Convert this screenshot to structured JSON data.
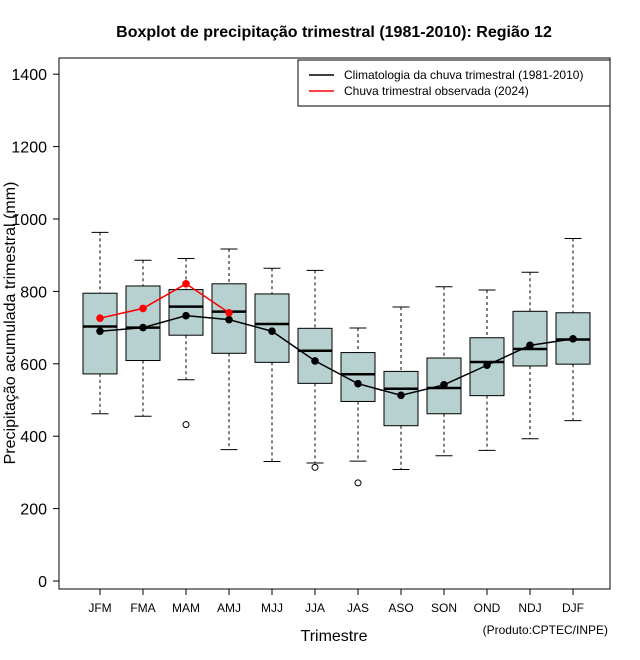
{
  "chart_data": {
    "type": "boxplot",
    "title": "Boxplot de precipitação trimestral (1981-2010): Região 12",
    "xlabel": "Trimestre",
    "ylabel": "Precipitação acumulada trimestral (mm)",
    "ylim": [
      0,
      1400
    ],
    "yticks": [
      0,
      200,
      400,
      600,
      800,
      1000,
      1200,
      1400
    ],
    "credit": "(Produto:CPTEC/INPE)",
    "categories": [
      "JFM",
      "FMA",
      "MAM",
      "AMJ",
      "MJJ",
      "JJA",
      "JAS",
      "ASO",
      "SON",
      "OND",
      "NDJ",
      "DJF"
    ],
    "boxes": [
      {
        "min": 462,
        "q1": 572,
        "median": 703,
        "q3": 795,
        "max": 963,
        "outliers": []
      },
      {
        "min": 455,
        "q1": 609,
        "median": 700,
        "q3": 815,
        "max": 886,
        "outliers": []
      },
      {
        "min": 556,
        "q1": 679,
        "median": 758,
        "q3": 805,
        "max": 891,
        "outliers": [
          432
        ]
      },
      {
        "min": 363,
        "q1": 629,
        "median": 744,
        "q3": 821,
        "max": 917,
        "outliers": []
      },
      {
        "min": 330,
        "q1": 604,
        "median": 710,
        "q3": 793,
        "max": 864,
        "outliers": []
      },
      {
        "min": 326,
        "q1": 546,
        "median": 636,
        "q3": 698,
        "max": 858,
        "outliers": [
          314
        ]
      },
      {
        "min": 331,
        "q1": 496,
        "median": 571,
        "q3": 631,
        "max": 699,
        "outliers": [
          271
        ]
      },
      {
        "min": 308,
        "q1": 429,
        "median": 531,
        "q3": 579,
        "max": 757,
        "outliers": []
      },
      {
        "min": 346,
        "q1": 462,
        "median": 533,
        "q3": 616,
        "max": 813,
        "outliers": []
      },
      {
        "min": 361,
        "q1": 512,
        "median": 605,
        "q3": 672,
        "max": 804,
        "outliers": []
      },
      {
        "min": 393,
        "q1": 594,
        "median": 641,
        "q3": 745,
        "max": 853,
        "outliers": []
      },
      {
        "min": 443,
        "q1": 599,
        "median": 667,
        "q3": 741,
        "max": 946,
        "outliers": []
      }
    ],
    "series": [
      {
        "name": "Climatologia da chuva trimestral (1981-2010)",
        "color": "#000000",
        "values": [
          690,
          700,
          733,
          722,
          690,
          608,
          545,
          513,
          542,
          596,
          651,
          669
        ]
      },
      {
        "name": "Chuva trimestral observada (2024)",
        "color": "#ff0000",
        "values": [
          726,
          753,
          821,
          741,
          null,
          null,
          null,
          null,
          null,
          null,
          null,
          null
        ]
      }
    ],
    "box_fill": "#b7d0d0",
    "legend_position": "top-right"
  }
}
